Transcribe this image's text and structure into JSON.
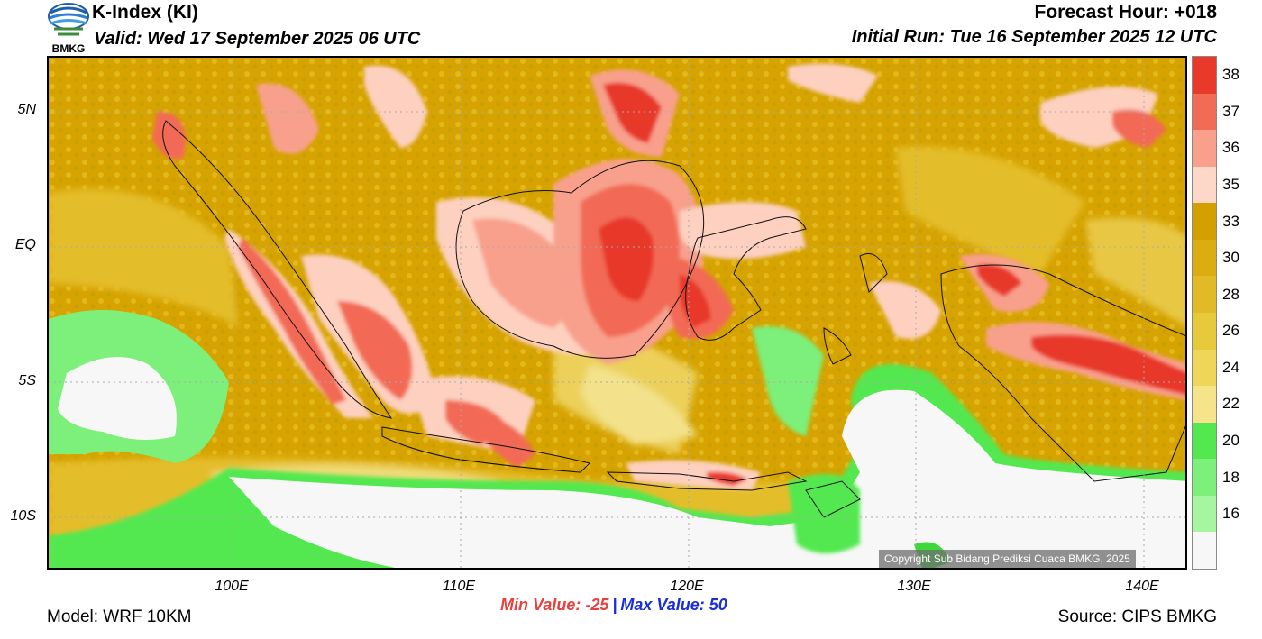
{
  "header": {
    "logo_text": "BMKG",
    "title": "K-Index (KI)",
    "valid": "Valid: Wed 17 September 2025 06 UTC",
    "forecast_hour": "Forecast Hour: +018",
    "initial_run": "Initial Run: Tue 16 September 2025 12 UTC"
  },
  "map": {
    "y_ticks": [
      "5N",
      "EQ",
      "5S",
      "10S"
    ],
    "x_ticks": [
      "100E",
      "110E",
      "120E",
      "130E",
      "140E"
    ],
    "copyright": "Copyright Sub Bidang Prediksi Cuaca BMKG, 2025"
  },
  "colorbar": {
    "labels": [
      "38",
      "37",
      "36",
      "35",
      "33",
      "30",
      "28",
      "26",
      "24",
      "22",
      "20",
      "18",
      "16"
    ],
    "colors": [
      "#e8392a",
      "#f26b55",
      "#f8a08c",
      "#fdd8c8",
      "#d4a000",
      "#dcad10",
      "#e2ba25",
      "#e9c93c",
      "#efd659",
      "#f5e48a",
      "#53e84f",
      "#7cf07a",
      "#a6f6a1",
      "#f7f7f7"
    ]
  },
  "stats": {
    "min_label": "Min Value: -25",
    "separator": "|",
    "max_label": "Max Value:  50"
  },
  "footer": {
    "model": "Model: WRF 10KM",
    "source": "Source: CIPS BMKG"
  }
}
